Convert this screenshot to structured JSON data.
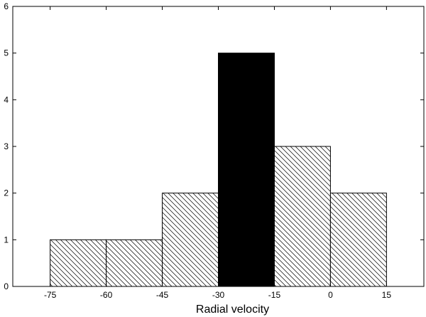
{
  "chart_data": {
    "type": "bar",
    "title": "",
    "xlabel": "Radial velocity",
    "ylabel": "",
    "xlim": [
      -85,
      25
    ],
    "ylim": [
      0,
      6
    ],
    "xticks": [
      -75,
      -60,
      -45,
      -30,
      -15,
      0,
      15
    ],
    "yticks": [
      0,
      1,
      2,
      3,
      4,
      5,
      6
    ],
    "grid": false,
    "bins": [
      {
        "x0": -75,
        "x1": -60,
        "count": 1,
        "fill": "hatch"
      },
      {
        "x0": -60,
        "x1": -45,
        "count": 1,
        "fill": "hatch"
      },
      {
        "x0": -45,
        "x1": -30,
        "count": 2,
        "fill": "hatch"
      },
      {
        "x0": -30,
        "x1": -15,
        "count": 5,
        "fill": "solid"
      },
      {
        "x0": -15,
        "x1": 0,
        "count": 3,
        "fill": "hatch"
      },
      {
        "x0": 0,
        "x1": 15,
        "count": 2,
        "fill": "hatch"
      }
    ],
    "colors": {
      "solid": "#000000",
      "hatch_line": "#000000",
      "background": "#ffffff"
    }
  }
}
